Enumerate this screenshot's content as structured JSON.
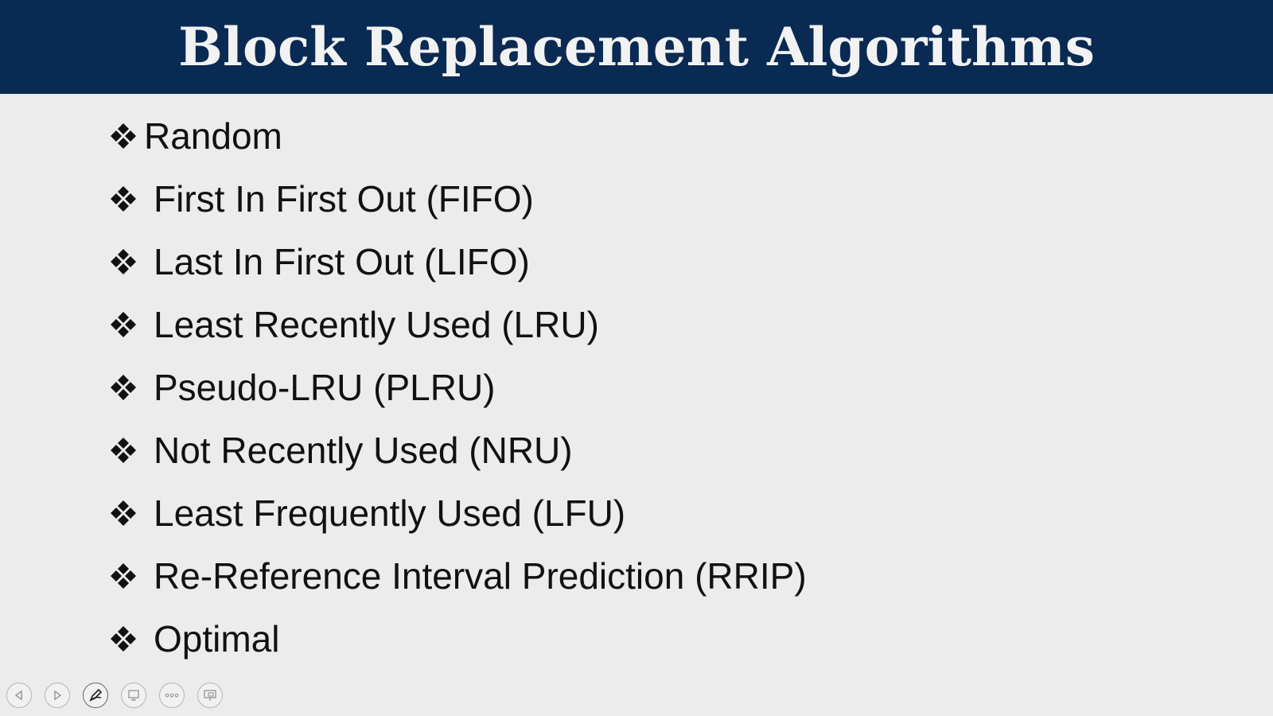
{
  "slide": {
    "title": "Block Replacement Algorithms",
    "bullets": [
      "Random",
      "First In First Out (FIFO)",
      "Last In First Out (LIFO)",
      "Least Recently Used (LRU)",
      "Pseudo-LRU (PLRU)",
      "Not Recently Used (NRU)",
      "Least Frequently Used (LFU)",
      "Re-Reference Interval Prediction (RRIP)",
      "Optimal"
    ],
    "bullet_icon": "four-diamond-icon"
  },
  "colors": {
    "title_bar": "#092a52",
    "title_text": "#f2f2f2",
    "background": "#ececec",
    "body_text": "#111111"
  },
  "controls": {
    "icons": [
      "previous-slide-icon",
      "next-slide-icon",
      "pen-icon",
      "slides-overview-icon",
      "more-options-icon",
      "presenter-view-icon"
    ]
  }
}
